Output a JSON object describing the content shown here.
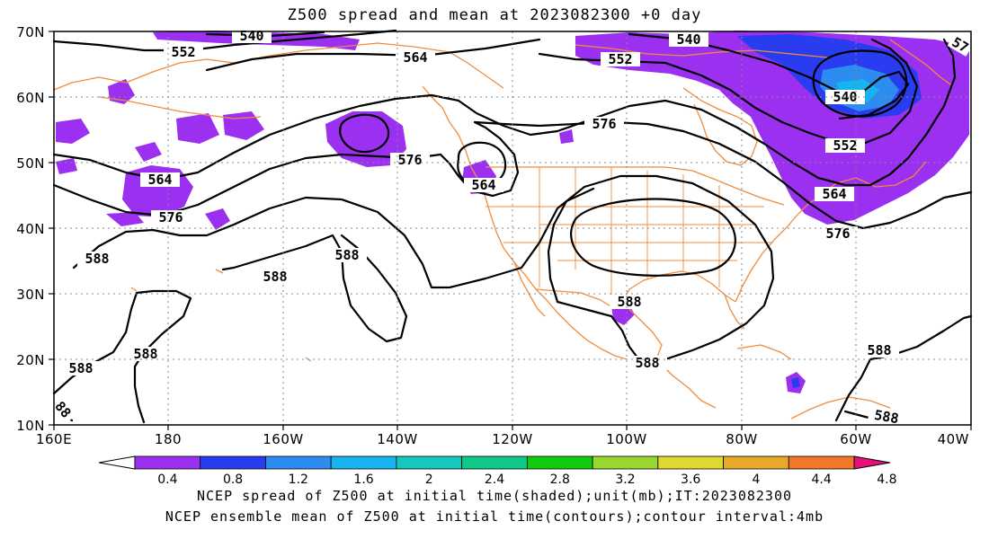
{
  "title": "Z500 spread and mean at 2023082300 +0 day",
  "lat_labels": [
    "70N",
    "60N",
    "50N",
    "40N",
    "30N",
    "20N",
    "10N"
  ],
  "lon_labels": [
    "160E",
    "180",
    "160W",
    "140W",
    "120W",
    "100W",
    "80W",
    "60W",
    "40W"
  ],
  "colorbar": {
    "ticks": [
      "0.4",
      "0.8",
      "1.2",
      "1.6",
      "2",
      "2.4",
      "2.8",
      "3.2",
      "3.6",
      "4",
      "4.4",
      "4.8"
    ],
    "colors": [
      "#9b30f0",
      "#2a3cf0",
      "#2c8cf0",
      "#18b4f0",
      "#14c8c0",
      "#10c888",
      "#10cc10",
      "#98d830",
      "#e0d830",
      "#e8a828",
      "#f07828",
      "#f04848",
      "#e8107a"
    ]
  },
  "contour_labels": {
    "l540_a": "540",
    "l540_b": "540",
    "l540_c": "540",
    "l552_a": "552",
    "l552_b": "552",
    "l552_c": "552",
    "l564_a": "564",
    "l564_b": "564",
    "l564_c": "564",
    "l564_d": "564",
    "l576_a": "576",
    "l576_b": "576",
    "l576_c": "576",
    "l576_d": "576",
    "l576_e": "57",
    "l588_a": "588",
    "l588_b": "588",
    "l588_c": "588",
    "l588_d": "588",
    "l588_e": "588",
    "l588_f": "588",
    "l588_g": "588",
    "l588_h": "588",
    "l588_i": "588",
    "l588_j": "88"
  },
  "footer": {
    "line1": "NCEP spread of Z500 at initial time(shaded);unit(mb);IT:2023082300",
    "line2": "NCEP ensemble mean of Z500 at initial time(contours);contour interval:4mb"
  },
  "colors": {
    "coast": "#f08c3c",
    "spread_low": "#9b30f0",
    "spread_mid": "#2a3cf0",
    "spread_high": "#2c8cf0",
    "grid": "#888888"
  }
}
